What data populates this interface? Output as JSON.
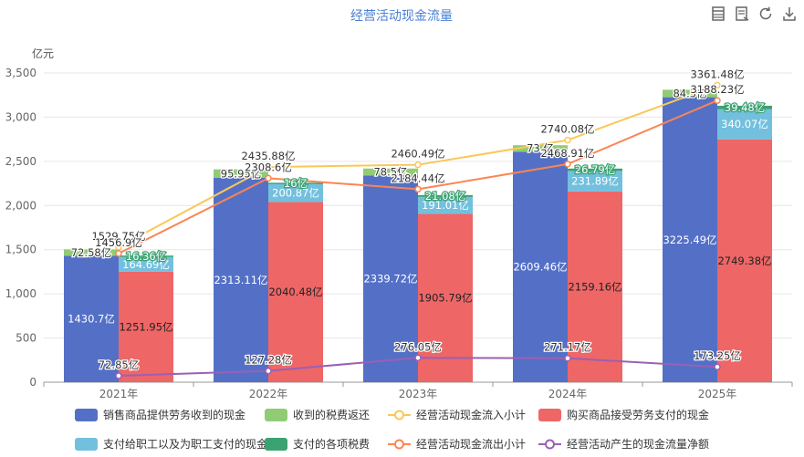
{
  "toolbar": {
    "icons": [
      "table-view-icon",
      "data-view-icon",
      "refresh-icon",
      "download-icon"
    ]
  },
  "chart_data": {
    "type": "bar",
    "title": "经营活动现金流量",
    "y_unit_label": "亿元",
    "categories": [
      "2021年",
      "2022年",
      "2023年",
      "2024年",
      "2025年"
    ],
    "ylim": [
      0,
      3500
    ],
    "yticks": [
      "0",
      "500",
      "1,000",
      "1,500",
      "2,000",
      "2,500",
      "3,000",
      "3,500"
    ],
    "grid": true,
    "legend_position": "bottom",
    "stacks": {
      "inflow": [
        "销售商品提供劳务收到的现金",
        "收到的税费返还"
      ],
      "outflow": [
        "购买商品接受劳务支付的现金",
        "支付给职工以及为职工支付的现金",
        "支付的各项税费"
      ]
    },
    "series": [
      {
        "name": "销售商品提供劳务收到的现金",
        "type": "bar",
        "stack": "inflow",
        "color": "#5470c6",
        "values": [
          1430.7,
          2313.11,
          2339.72,
          2609.46,
          3225.49
        ],
        "labels": [
          "1430.7亿",
          "2313.11亿",
          "2339.72亿",
          "2609.46亿",
          "3225.49亿"
        ]
      },
      {
        "name": "收到的税费返还",
        "type": "bar",
        "stack": "inflow",
        "color": "#91cc75",
        "values": [
          72.58,
          95.95,
          78.5,
          73.0,
          84.5
        ],
        "labels": [
          "72.58亿",
          "95.95亿",
          "78.5亿",
          "73.亿",
          "84.5亿"
        ]
      },
      {
        "name": "购买商品接受劳务支付的现金",
        "type": "bar",
        "stack": "outflow",
        "color": "#ee6666",
        "values": [
          1251.95,
          2040.48,
          1905.79,
          2159.16,
          2749.38
        ],
        "labels": [
          "1251.95亿",
          "2040.48亿",
          "1905.79亿",
          "2159.16亿",
          "2749.38亿"
        ]
      },
      {
        "name": "支付给职工以及为职工支付的现金",
        "type": "bar",
        "stack": "outflow",
        "color": "#73c0de",
        "values": [
          164.69,
          200.87,
          191.01,
          231.89,
          340.07
        ],
        "labels": [
          "164.69亿",
          "200.87亿",
          "191.01亿",
          "231.89亿",
          "340.07亿"
        ]
      },
      {
        "name": "支付的各项税费",
        "type": "bar",
        "stack": "outflow",
        "color": "#3ba272",
        "values": [
          16.36,
          16.0,
          21.08,
          26.79,
          39.48
        ],
        "labels": [
          "16.36亿",
          "16亿",
          "21.08亿",
          "26.79亿",
          "39.48亿"
        ]
      },
      {
        "name": "经营活动现金流入小计",
        "type": "line",
        "color": "#fac858",
        "values": [
          1529.75,
          2435.88,
          2460.49,
          2740.08,
          3361.48
        ],
        "labels": [
          "1529.75亿",
          "2435.88亿",
          "2460.49亿",
          "2740.08亿",
          "3361.48亿"
        ]
      },
      {
        "name": "经营活动现金流出小计",
        "type": "line",
        "color": "#fc8452",
        "values": [
          1456.9,
          2308.6,
          2184.44,
          2468.91,
          3188.23
        ],
        "labels": [
          "1456.9亿",
          "2308.6亿",
          "2184.44亿",
          "2468.91亿",
          "3188.23亿"
        ]
      },
      {
        "name": "经营活动产生的现金流量净额",
        "type": "line",
        "color": "#9a60b4",
        "values": [
          72.85,
          127.28,
          276.05,
          271.17,
          173.25
        ],
        "labels": [
          "72.85亿",
          "127.28亿",
          "276.05亿",
          "271.17亿",
          "173.25亿"
        ]
      }
    ],
    "legend_order": [
      "销售商品提供劳务收到的现金",
      "收到的税费返还",
      "经营活动现金流入小计",
      "购买商品接受劳务支付的现金",
      "支付给职工以及为职工支付的现金",
      "支付的各项税费",
      "经营活动现金流出小计",
      "经营活动产生的现金流量净额"
    ]
  }
}
